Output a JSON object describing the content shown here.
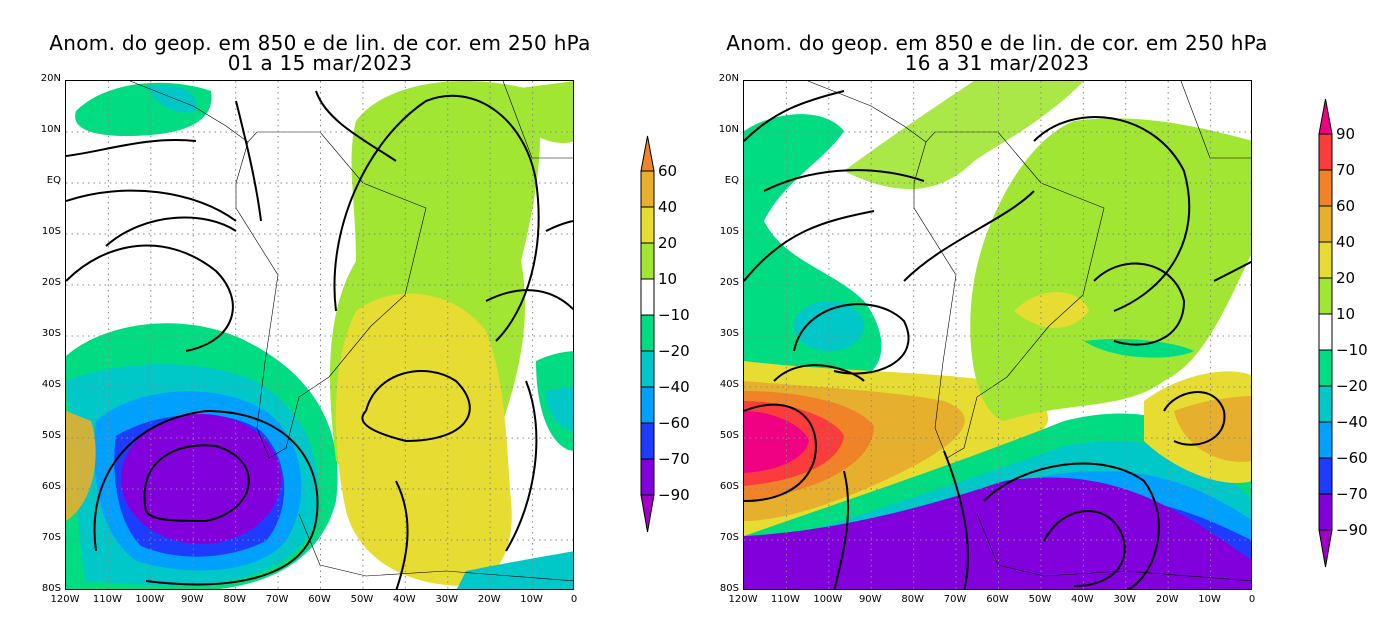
{
  "panels": [
    {
      "title": "Anom. do geop. em 850 e de lin. de cor. em 250 hPa",
      "subtitle": "01 a 15 mar/2023"
    },
    {
      "title": "Anom. do geop. em 850 e de lin. de cor. em 250 hPa",
      "subtitle": "16 a 31 mar/2023"
    }
  ],
  "lat_ticks": [
    "20N",
    "10N",
    "EQ",
    "10S",
    "20S",
    "30S",
    "40S",
    "50S",
    "60S",
    "70S",
    "80S"
  ],
  "lon_ticks": [
    "120W",
    "110W",
    "100W",
    "90W",
    "80W",
    "70W",
    "60W",
    "50W",
    "40W",
    "30W",
    "20W",
    "10W",
    "0"
  ],
  "colorbars": [
    {
      "labels": [
        "60",
        "40",
        "20",
        "10",
        "−10",
        "−20",
        "−40",
        "−60",
        "−70",
        "−90"
      ],
      "colors": [
        "#f08228",
        "#e6af2d",
        "#e6dc32",
        "#a0e632",
        "#ffffff",
        "#00dc82",
        "#00c8c8",
        "#00a0ff",
        "#1e3cff",
        "#8200dc",
        "#a000c8"
      ]
    },
    {
      "labels": [
        "90",
        "70",
        "60",
        "40",
        "20",
        "10",
        "−10",
        "−20",
        "−40",
        "−60",
        "−70",
        "−90"
      ],
      "colors": [
        "#f00082",
        "#fa3c3c",
        "#f08228",
        "#e6af2d",
        "#e6dc32",
        "#a0e632",
        "#ffffff",
        "#00dc82",
        "#00c8c8",
        "#00a0ff",
        "#1e3cff",
        "#8200dc",
        "#a000c8"
      ]
    }
  ]
}
